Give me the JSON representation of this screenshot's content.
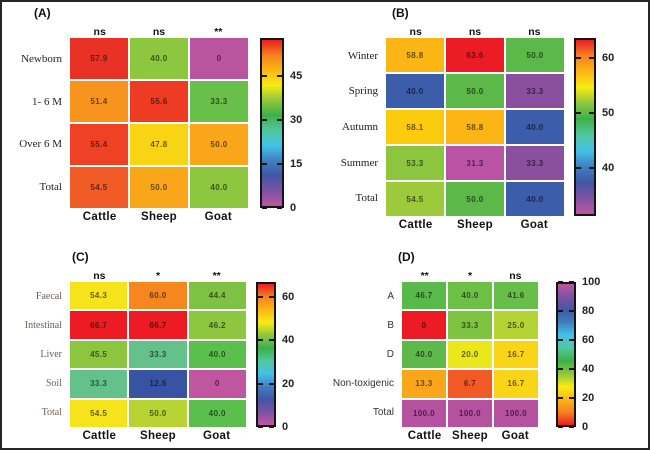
{
  "figure": {
    "background": "#ffffff",
    "border_color": "#262626"
  },
  "rainbow_stops_low_to_high": [
    "#bc579f",
    "#7e52a2",
    "#4156a5",
    "#3f7fc1",
    "#45c1e8",
    "#52c79d",
    "#3cb04a",
    "#8ec63f",
    "#f7ec13",
    "#fbb616",
    "#f58220",
    "#ec1c24"
  ],
  "chart_data": [
    {
      "type": "heatmap",
      "panel": "(A)",
      "significance": [
        "ns",
        "ns",
        "**"
      ],
      "categories_x": [
        "Cattle",
        "Sheep",
        "Goat"
      ],
      "categories_y": [
        "Newborn",
        "1- 6 M",
        "Over 6 M",
        "Total"
      ],
      "values": [
        [
          57.9,
          40.0,
          0
        ],
        [
          51.4,
          55.6,
          33.3
        ],
        [
          55.4,
          47.8,
          50.0
        ],
        [
          54.5,
          50.0,
          40.0
        ]
      ],
      "value_labels": [
        [
          "57.9",
          "40.0",
          "0"
        ],
        [
          "51.4",
          "55.6",
          "33.3"
        ],
        [
          "55.4",
          "47.8",
          "50.0"
        ],
        [
          "54.5",
          "50.0",
          "40.0"
        ]
      ],
      "cell_colors": [
        [
          "#e93225",
          "#8dc63f",
          "#b8559e"
        ],
        [
          "#f7941d",
          "#ee3c24",
          "#68bf4a"
        ],
        [
          "#ef4123",
          "#f8d414",
          "#f9a61b"
        ],
        [
          "#f15b26",
          "#f9a61b",
          "#8dc63f"
        ]
      ],
      "row_label_font": "serif",
      "row_label_color": "#222222",
      "colorbar": {
        "ticks": [
          "45",
          "30",
          "15",
          "0"
        ],
        "vmin": 0,
        "vmax": 57.9,
        "reversed": false
      }
    },
    {
      "type": "heatmap",
      "panel": "(B)",
      "significance": [
        "ns",
        "ns",
        "ns"
      ],
      "categories_x": [
        "Cattle",
        "Sheep",
        "Goat"
      ],
      "categories_y": [
        "Winter",
        "Spring",
        "Autumn",
        "Summer",
        "Total"
      ],
      "values": [
        [
          58.8,
          63.6,
          50.0
        ],
        [
          40.0,
          50.0,
          33.3
        ],
        [
          58.1,
          58.8,
          40.0
        ],
        [
          53.3,
          31.3,
          33.3
        ],
        [
          54.5,
          50.0,
          40.0
        ]
      ],
      "value_labels": [
        [
          "58.8",
          "63.6",
          "50.0"
        ],
        [
          "40.0",
          "50.0",
          "33.3"
        ],
        [
          "58.1",
          "58.8",
          "40.0"
        ],
        [
          "53.3",
          "31.3",
          "33.3"
        ],
        [
          "54.5",
          "50.0",
          "40.0"
        ]
      ],
      "cell_colors": [
        [
          "#fbb615",
          "#ec1c24",
          "#5bb849"
        ],
        [
          "#3c5da9",
          "#5bb849",
          "#8a4f9f"
        ],
        [
          "#fccb0e",
          "#fbb615",
          "#3c5da9"
        ],
        [
          "#8cc63f",
          "#bb53a4",
          "#8a4f9f"
        ],
        [
          "#9cca3b",
          "#5bb849",
          "#3c5da9"
        ]
      ],
      "row_label_font": "serif",
      "row_label_color": "#222222",
      "colorbar": {
        "ticks": [
          "60",
          "50",
          "40"
        ],
        "vmin": 31.3,
        "vmax": 63.6,
        "reversed": false
      }
    },
    {
      "type": "heatmap",
      "panel": "(C)",
      "significance": [
        "ns",
        "*",
        "**"
      ],
      "categories_x": [
        "Cattle",
        "Sheep",
        "Goat"
      ],
      "categories_y": [
        "Faecal",
        "Intestinal",
        "Liver",
        "Soil",
        "Total"
      ],
      "values": [
        [
          54.3,
          60.0,
          44.4
        ],
        [
          66.7,
          66.7,
          46.2
        ],
        [
          45.5,
          33.3,
          40.0
        ],
        [
          33.3,
          12.5,
          0
        ],
        [
          54.5,
          50.0,
          40.0
        ]
      ],
      "value_labels": [
        [
          "54.3",
          "60.0",
          "44.4"
        ],
        [
          "66.7",
          "66.7",
          "46.2"
        ],
        [
          "45.5",
          "33.3",
          "40.0"
        ],
        [
          "33.3",
          "12.5",
          "0"
        ],
        [
          "54.5",
          "50.0",
          "40.0"
        ]
      ],
      "cell_colors": [
        [
          "#f5e41b",
          "#f6871f",
          "#7dc242"
        ],
        [
          "#ed1c24",
          "#ed1c24",
          "#8dc63f"
        ],
        [
          "#8cc63f",
          "#64c189",
          "#5abf4c"
        ],
        [
          "#64c189",
          "#3953a4",
          "#c0569f"
        ],
        [
          "#f5e41b",
          "#b8d433",
          "#5abf4c"
        ]
      ],
      "row_label_font": "serif",
      "row_label_color": "#6e6158",
      "colorbar": {
        "ticks": [
          "60",
          "40",
          "20",
          "0"
        ],
        "vmin": 0,
        "vmax": 66.7,
        "reversed": false
      }
    },
    {
      "type": "heatmap",
      "panel": "(D)",
      "significance": [
        "**",
        "*",
        "ns"
      ],
      "categories_x": [
        "Cattle",
        "Sheep",
        "Goat"
      ],
      "categories_y": [
        "A",
        "B",
        "D",
        "Non-toxigenic",
        "Total"
      ],
      "values": [
        [
          46.7,
          40.0,
          41.6
        ],
        [
          0,
          33.3,
          25.0
        ],
        [
          40.0,
          20.0,
          16.7
        ],
        [
          13.3,
          6.7,
          16.7
        ],
        [
          100.0,
          100.0,
          100.0
        ]
      ],
      "value_labels": [
        [
          "46.7",
          "40.0",
          "41.6"
        ],
        [
          "0",
          "33.3",
          "25.0"
        ],
        [
          "40.0",
          "20.0",
          "16.7"
        ],
        [
          "13.3",
          "6.7",
          "16.7"
        ],
        [
          "100.0",
          "100.0",
          "100.0"
        ]
      ],
      "cell_colors": [
        [
          "#5ab94b",
          "#6cc046",
          "#67be48"
        ],
        [
          "#ed1c24",
          "#7ec342",
          "#b5d334"
        ],
        [
          "#5cb94a",
          "#ece71b",
          "#f9d417"
        ],
        [
          "#faa61b",
          "#f15a25",
          "#f9d417"
        ],
        [
          "#b5519f",
          "#b5519f",
          "#b5519f"
        ]
      ],
      "row_label_font": "sans",
      "row_label_color": "#333333",
      "colorbar": {
        "ticks": [
          "100",
          "80",
          "60",
          "40",
          "20",
          "0"
        ],
        "vmin": 0,
        "vmax": 100,
        "reversed": true
      }
    }
  ]
}
